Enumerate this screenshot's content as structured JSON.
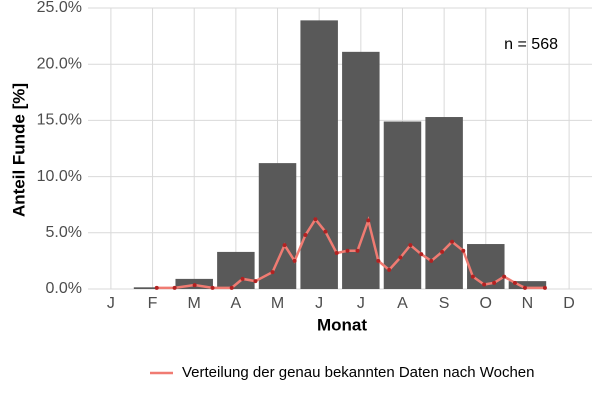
{
  "chart_data": {
    "type": "bar",
    "y_label": "Anteil Funde [%]",
    "x_label": "Monat",
    "annotation": "n = 568",
    "categories": [
      "J",
      "F",
      "M",
      "A",
      "M",
      "J",
      "J",
      "A",
      "S",
      "O",
      "N",
      "D"
    ],
    "values": [
      0,
      0.15,
      0.9,
      3.3,
      11.2,
      23.9,
      21.1,
      14.9,
      15.3,
      4.0,
      0.7,
      0
    ],
    "color": "#595959",
    "xlim": [
      0.45,
      12.55
    ],
    "ylim": [
      0,
      25
    ],
    "yticks": [
      {
        "value": 0,
        "label": "0.0%"
      },
      {
        "value": 5,
        "label": "5.0%"
      },
      {
        "value": 10,
        "label": "10.0%"
      },
      {
        "value": 15,
        "label": "15.0%"
      },
      {
        "value": 20,
        "label": "20.0%"
      },
      {
        "value": 25,
        "label": "25.0%"
      }
    ],
    "grid": true,
    "legend": "bottom",
    "series": [
      {
        "type": "line",
        "name": "Verteilung der genau bekannten Daten nach Wochen",
        "color": "#f07b72",
        "point_color": "#b22222",
        "x": [
          2.1,
          2.53,
          3.01,
          3.44,
          3.9,
          4.16,
          4.47,
          4.88,
          5.17,
          5.41,
          5.67,
          5.91,
          6.15,
          6.42,
          6.68,
          6.92,
          7.18,
          7.42,
          7.68,
          7.95,
          8.19,
          8.45,
          8.69,
          8.95,
          9.19,
          9.46,
          9.69,
          9.96,
          10.2,
          10.44,
          10.7,
          10.94,
          11.42
        ],
        "values": [
          0.1,
          0.1,
          0.35,
          0.1,
          0.1,
          0.9,
          0.7,
          1.5,
          3.9,
          2.5,
          4.8,
          6.2,
          5.1,
          3.2,
          3.4,
          3.4,
          6.1,
          2.5,
          1.7,
          2.8,
          3.9,
          3.1,
          2.5,
          3.3,
          4.2,
          3.4,
          1.1,
          0.4,
          0.55,
          1.1,
          0.55,
          0.1,
          0.1
        ]
      }
    ]
  }
}
